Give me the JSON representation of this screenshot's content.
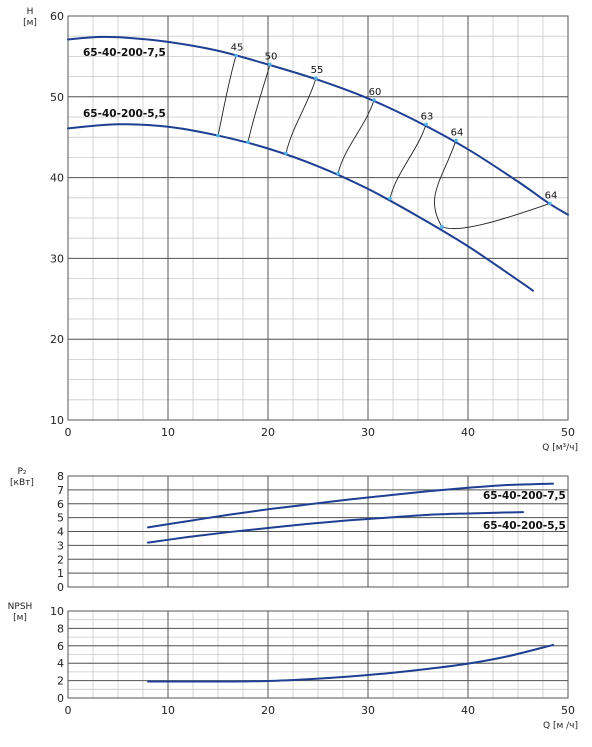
{
  "chart_data": [
    {
      "type": "line",
      "xlabel": "Q [м³/ч]",
      "ylabel": "H\n[м]",
      "xlim": [
        0,
        50
      ],
      "ylim": [
        10,
        60
      ],
      "xticks": [
        0,
        10,
        20,
        30,
        40,
        50
      ],
      "yticks": [
        10,
        20,
        30,
        40,
        50,
        60
      ],
      "grid": true,
      "series": [
        {
          "name": "65-40-200-7,5",
          "x": [
            0,
            3,
            6,
            10,
            15,
            20,
            25,
            30,
            35,
            40,
            45,
            48,
            50
          ],
          "y": [
            57.1,
            57.4,
            57.3,
            56.8,
            55.7,
            54.0,
            52.1,
            49.8,
            46.9,
            43.5,
            39.5,
            36.9,
            35.4
          ]
        },
        {
          "name": "65-40-200-5,5",
          "x": [
            0,
            5,
            10,
            15,
            20,
            25,
            30,
            35,
            40,
            45,
            46.5
          ],
          "y": [
            46.1,
            46.6,
            46.3,
            45.2,
            43.6,
            41.4,
            38.6,
            35.2,
            31.5,
            27.3,
            26.0
          ]
        }
      ],
      "efficiency_curves": [
        {
          "label": "45",
          "upper": [
            16.8,
            55.1
          ],
          "lower": [
            15.0,
            45.2
          ]
        },
        {
          "label": "50",
          "upper": [
            20.2,
            54.0
          ],
          "lower": [
            18.0,
            44.4
          ]
        },
        {
          "label": "55",
          "upper": [
            24.8,
            52.3
          ],
          "lower": [
            21.8,
            43.0
          ]
        },
        {
          "label": "60",
          "upper": [
            30.6,
            49.6
          ],
          "lower": [
            27.0,
            40.5
          ]
        },
        {
          "label": "63",
          "upper": [
            35.8,
            46.6
          ],
          "lower": [
            32.2,
            37.4
          ]
        },
        {
          "label": "64",
          "upper": [
            38.8,
            44.6
          ],
          "lower": [
            37.4,
            33.9
          ]
        },
        {
          "label": "64",
          "upper": [
            48.2,
            36.8
          ],
          "lower": [
            37.4,
            33.9
          ]
        }
      ]
    },
    {
      "type": "line",
      "ylabel": "P₂\n[кВт]",
      "xlim": [
        0,
        50
      ],
      "ylim": [
        0,
        8
      ],
      "yticks": [
        0,
        1,
        2,
        3,
        4,
        5,
        6,
        7,
        8
      ],
      "grid": true,
      "series": [
        {
          "name": "65-40-200-7,5",
          "x": [
            8,
            12,
            16,
            20,
            24,
            28,
            32,
            36,
            40,
            44,
            48.5
          ],
          "y": [
            4.3,
            4.75,
            5.2,
            5.6,
            5.95,
            6.3,
            6.6,
            6.9,
            7.15,
            7.35,
            7.45
          ]
        },
        {
          "name": "65-40-200-5,5",
          "x": [
            8,
            12,
            16,
            20,
            24,
            28,
            32,
            36,
            40,
            45.5
          ],
          "y": [
            3.2,
            3.6,
            3.95,
            4.25,
            4.55,
            4.8,
            5.0,
            5.2,
            5.3,
            5.4
          ]
        }
      ]
    },
    {
      "type": "line",
      "xlabel": "Q [м /ч]",
      "ylabel": "NPSH\n[м]",
      "xlim": [
        0,
        50
      ],
      "ylim": [
        0,
        10
      ],
      "xticks": [
        0,
        10,
        20,
        30,
        40,
        50
      ],
      "yticks": [
        0,
        2,
        4,
        6,
        8,
        10
      ],
      "grid": true,
      "series": [
        {
          "x": [
            8,
            12,
            16,
            20,
            24,
            28,
            32,
            36,
            40,
            44,
            48.5
          ],
          "y": [
            1.9,
            1.9,
            1.9,
            1.95,
            2.15,
            2.45,
            2.85,
            3.35,
            3.95,
            4.8,
            6.1
          ]
        }
      ]
    }
  ],
  "colors": {
    "curve": "#1f3f93",
    "eff_dot": "#4fb3e6",
    "grid_major": "#555555",
    "grid_minor": "#c9c9c9"
  }
}
